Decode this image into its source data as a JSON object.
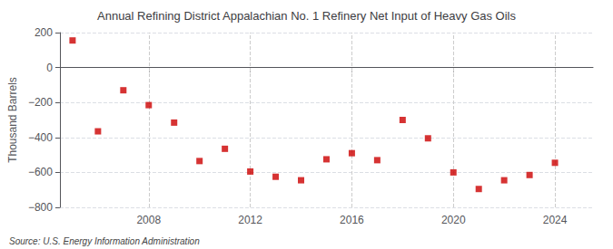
{
  "chart_data": {
    "type": "scatter",
    "title": "Annual Refining District Appalachian No. 1 Refinery Net Input of Heavy Gas Oils",
    "y_label": "Thousand Barrels",
    "annotations": [
      "Source: U.S. Energy Information Administration"
    ],
    "x": [
      2005,
      2006,
      2007,
      2008,
      2009,
      2010,
      2011,
      2012,
      2013,
      2014,
      2015,
      2016,
      2017,
      2018,
      2019,
      2020,
      2021,
      2022,
      2023,
      2024
    ],
    "values": [
      155,
      -365,
      -130,
      -215,
      -315,
      -535,
      -465,
      -595,
      -625,
      -645,
      -525,
      -490,
      -530,
      -300,
      -405,
      -600,
      -695,
      -645,
      -615,
      -545
    ],
    "color": "#cc0000",
    "marker": "square",
    "xlim": [
      2004.5,
      2025.5
    ],
    "xticks": [
      2008,
      2012,
      2016,
      2020,
      2024
    ],
    "ylim": [
      -800,
      200
    ],
    "yticks": [
      {
        "value": -800,
        "label": "−800"
      },
      {
        "value": -600,
        "label": "−600"
      },
      {
        "value": -400,
        "label": "−400"
      },
      {
        "value": -200,
        "label": "−200"
      },
      0,
      200
    ],
    "grid": true
  }
}
